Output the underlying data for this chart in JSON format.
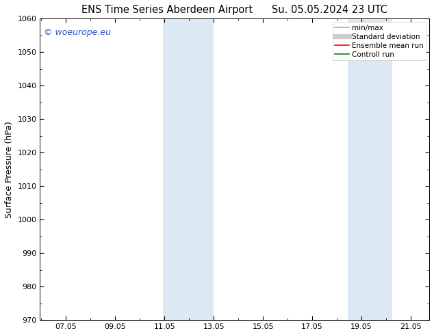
{
  "title_left": "ENS Time Series Aberdeen Airport",
  "title_right": "Su. 05.05.2024 23 UTC",
  "ylabel": "Surface Pressure (hPa)",
  "ylim": [
    970,
    1060
  ],
  "yticks": [
    970,
    980,
    990,
    1000,
    1010,
    1020,
    1030,
    1040,
    1050,
    1060
  ],
  "xlim_start": 6.0,
  "xlim_end": 21.8,
  "xtick_positions": [
    7.05,
    9.05,
    11.05,
    13.05,
    15.05,
    17.05,
    19.05,
    21.05
  ],
  "xtick_labels": [
    "07.05",
    "09.05",
    "11.05",
    "13.05",
    "15.05",
    "17.05",
    "19.05",
    "21.05"
  ],
  "shaded_bands": [
    {
      "x_start": 11.0,
      "x_end": 13.05,
      "color": "#dce9f5"
    },
    {
      "x_start": 18.5,
      "x_end": 20.3,
      "color": "#dce9f5"
    }
  ],
  "watermark_text": "© woeurope.eu",
  "watermark_color": "#3355cc",
  "legend_items": [
    {
      "label": "min/max",
      "color": "#aaaaaa",
      "lw": 1.2
    },
    {
      "label": "Standard deviation",
      "color": "#cccccc",
      "lw": 5
    },
    {
      "label": "Ensemble mean run",
      "color": "#ff0000",
      "lw": 1.2
    },
    {
      "label": "Controll run",
      "color": "#008800",
      "lw": 1.2
    }
  ],
  "background_color": "#ffffff",
  "title_fontsize": 10.5,
  "axis_label_fontsize": 9,
  "tick_fontsize": 8,
  "watermark_fontsize": 9,
  "legend_fontsize": 7.5
}
